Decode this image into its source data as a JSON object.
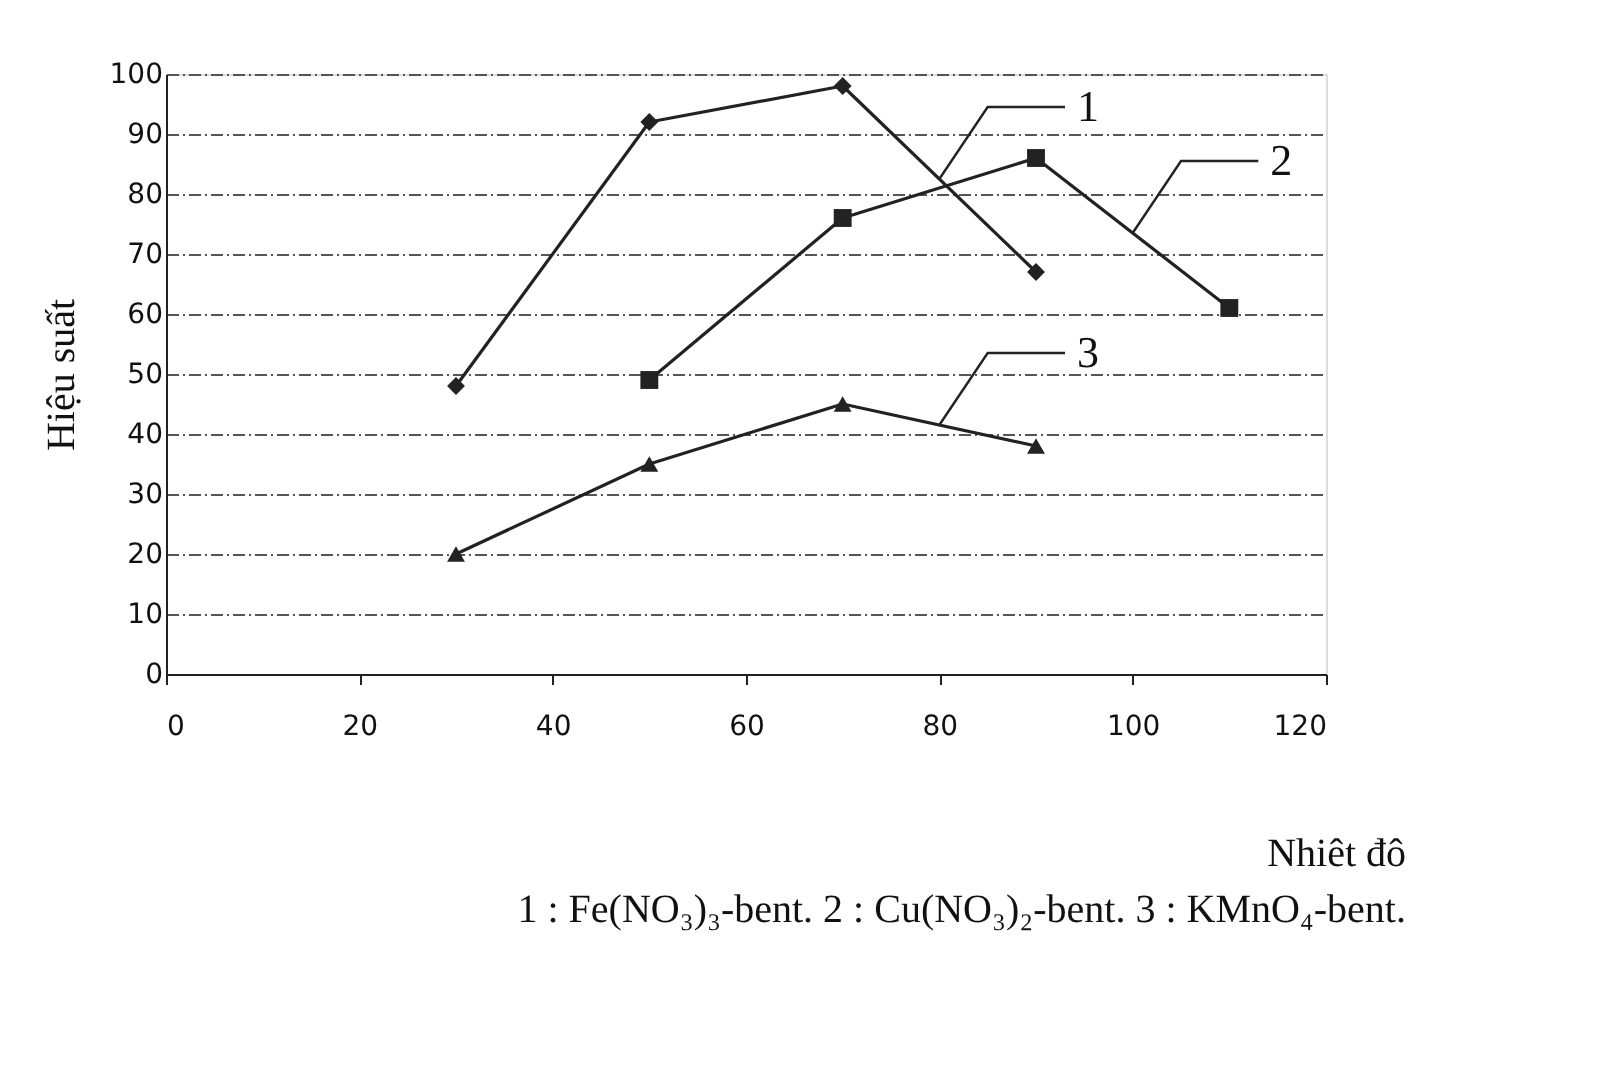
{
  "chart_data": {
    "type": "line",
    "xlabel": "Nhiêt đô",
    "ylabel": "Hiệu suất",
    "xlim": [
      0,
      120
    ],
    "xticks": [
      0,
      20,
      40,
      60,
      80,
      100,
      120
    ],
    "ylim": [
      0,
      100
    ],
    "yticks": [
      0,
      10,
      20,
      30,
      40,
      50,
      60,
      70,
      80,
      90,
      100
    ],
    "grid": "y",
    "series": [
      {
        "name": "1",
        "color": "#222222",
        "marker": "diamond",
        "x": [
          30,
          50,
          70,
          90
        ],
        "values": [
          48,
          92,
          98,
          67
        ]
      },
      {
        "name": "2",
        "color": "#222222",
        "marker": "square",
        "x": [
          50,
          70,
          90,
          110
        ],
        "values": [
          49,
          76,
          86,
          61
        ]
      },
      {
        "name": "3",
        "color": "#222222",
        "marker": "triangle",
        "x": [
          30,
          50,
          70,
          90
        ],
        "values": [
          20,
          35,
          45,
          38
        ]
      }
    ],
    "annotations": [
      "1 : Fe(NO₃)₃-bent.  2 : Cu(NO₃)₂-bent.  3 : KMnO₄-bent."
    ]
  }
}
